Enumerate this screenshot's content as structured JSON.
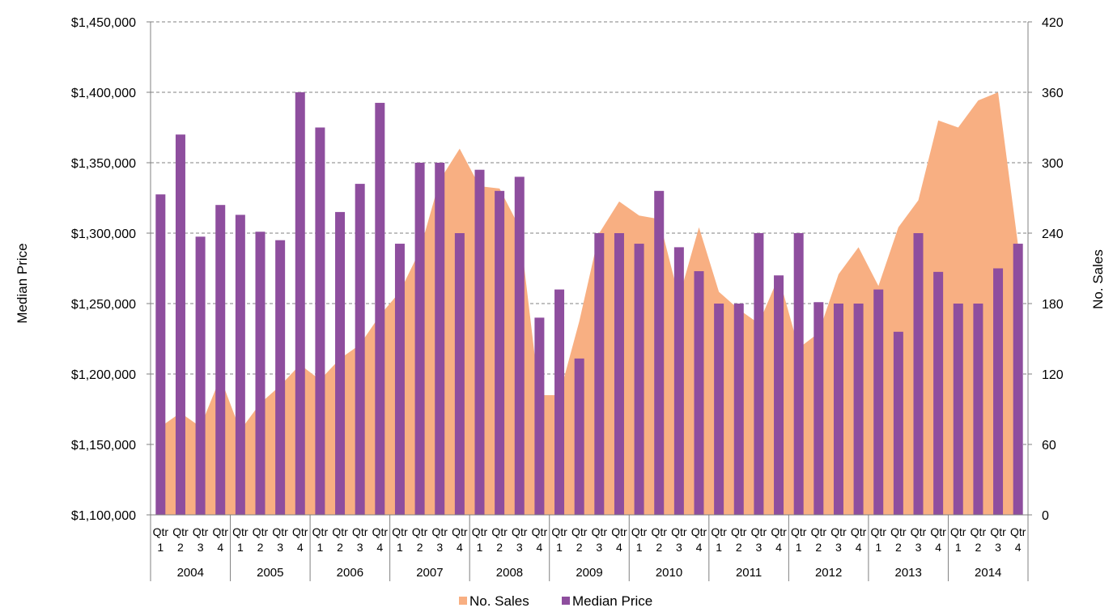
{
  "chart_data": {
    "type": "bar+area",
    "title": "",
    "ylabel_left": "Median Price",
    "ylabel_right": "No. Sales",
    "ylim_left": [
      1100000,
      1450000
    ],
    "ylim_right": [
      0,
      420
    ],
    "yticks_left": [
      "$1,100,000",
      "$1,150,000",
      "$1,200,000",
      "$1,250,000",
      "$1,300,000",
      "$1,350,000",
      "$1,400,000",
      "$1,450,000"
    ],
    "yticks_right": [
      "0",
      "60",
      "120",
      "180",
      "240",
      "300",
      "360",
      "420"
    ],
    "grid": "horizontal dashed",
    "legend_position": "bottom",
    "years": [
      "2004",
      "2005",
      "2006",
      "2007",
      "2008",
      "2009",
      "2010",
      "2011",
      "2012",
      "2013",
      "2014"
    ],
    "quarter_labels": [
      [
        "Qtr",
        "1"
      ],
      [
        "Qtr",
        "2"
      ],
      [
        "Qtr",
        "3"
      ],
      [
        "Qtr",
        "4"
      ]
    ],
    "series": [
      {
        "name": "No. Sales",
        "kind": "area",
        "axis": "right",
        "color": "#F8AF82",
        "values": [
          75,
          87,
          75,
          117,
          72,
          95,
          110,
          128,
          115,
          133,
          145,
          170,
          190,
          225,
          285,
          312,
          280,
          278,
          245,
          102,
          102,
          165,
          240,
          267,
          255,
          252,
          185,
          245,
          190,
          175,
          163,
          203,
          142,
          155,
          205,
          228,
          195,
          245,
          268,
          336,
          330,
          353,
          360,
          230
        ]
      },
      {
        "name": "Median Price",
        "kind": "bar",
        "axis": "left",
        "color": "#8E4E9E",
        "values": [
          1327500,
          1370000,
          1297500,
          1320000,
          1313000,
          1301000,
          1295000,
          1400000,
          1375000,
          1315000,
          1335000,
          1392500,
          1292500,
          1350000,
          1350000,
          1300000,
          1345000,
          1330000,
          1340000,
          1240000,
          1260000,
          1211000,
          1300000,
          1300000,
          1292500,
          1330000,
          1290000,
          1273000,
          1250000,
          1250000,
          1300000,
          1270000,
          1300000,
          1251000,
          1250000,
          1250000,
          1260000,
          1230000,
          1300000,
          1272500,
          1250000,
          1250000,
          1275000,
          1292500
        ]
      }
    ]
  },
  "colors": {
    "area": "#F8AF82",
    "bar": "#8E4E9E",
    "grid": "#808080",
    "axis": "#808080"
  }
}
